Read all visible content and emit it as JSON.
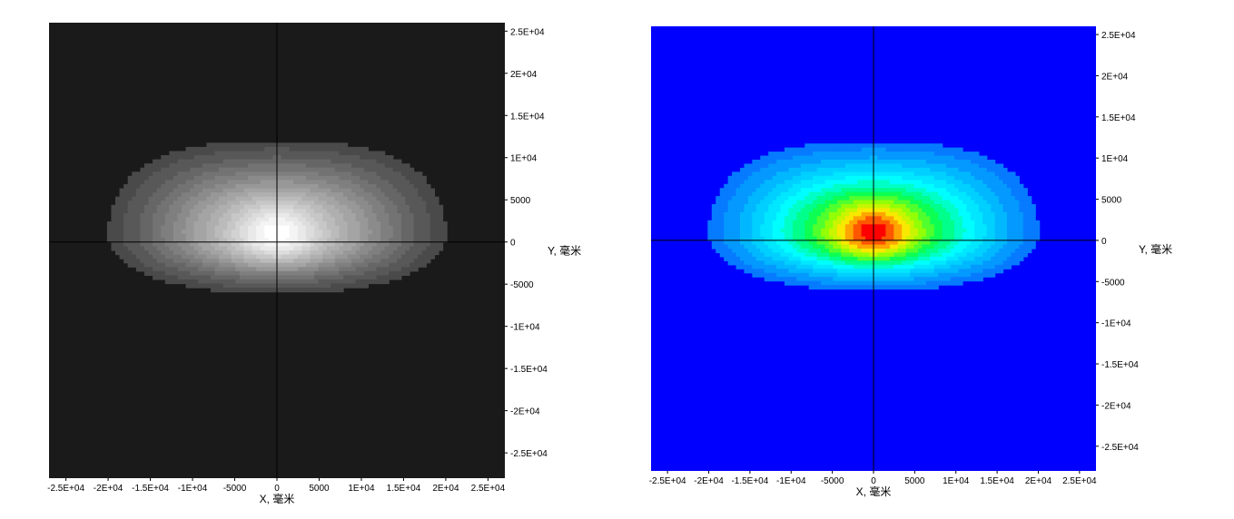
{
  "chart_data": [
    {
      "type": "heatmap",
      "colormap": "grayscale",
      "colors": {
        "background": "#1a1a1a",
        "low": "#3a3a3a",
        "high": "#ffffff",
        "axis_line": "#000000"
      },
      "xlabel": "X, 毫米",
      "ylabel": "Y, 毫米",
      "xlim": [
        -27000,
        27000
      ],
      "ylim": [
        -28000,
        26000
      ],
      "x_ticks": [
        -25000,
        -20000,
        -15000,
        -10000,
        -5000,
        0,
        5000,
        10000,
        15000,
        20000,
        25000
      ],
      "x_tick_labels": [
        "-2.5E+04",
        "-2E+04",
        "-1.5E+04",
        "-1E+04",
        "-5000",
        "0",
        "5000",
        "1E+04",
        "1.5E+04",
        "2E+04",
        "2.5E+04"
      ],
      "y_ticks": [
        25000,
        20000,
        15000,
        10000,
        5000,
        0,
        -5000,
        -10000,
        -15000,
        -20000,
        -25000
      ],
      "y_tick_labels": [
        "2.5E+04",
        "2E+04",
        "1.5E+04",
        "1E+04",
        "5000",
        "0",
        "-5000",
        "-1E+04",
        "-1.5E+04",
        "-2E+04",
        "-2.5E+04"
      ],
      "grid": false,
      "crosshair_at_origin": true,
      "levels": 16,
      "peak": {
        "x": 0,
        "y": 1000
      }
    },
    {
      "type": "heatmap",
      "colormap": "jet",
      "colors": {
        "background": "#0000ff",
        "low": "#0a5cff",
        "mid_cyan": "#00ffff",
        "mid_green": "#00ff00",
        "mid_yellow": "#ffff00",
        "high": "#ff0000",
        "axis_line": "#000000"
      },
      "xlabel": "X, 毫米",
      "ylabel": "Y, 毫米",
      "xlim": [
        -27000,
        27000
      ],
      "ylim": [
        -28000,
        26000
      ],
      "x_ticks": [
        -25000,
        -20000,
        -15000,
        -10000,
        -5000,
        0,
        5000,
        10000,
        15000,
        20000,
        25000
      ],
      "x_tick_labels": [
        "-2.5E+04",
        "-2E+04",
        "-1.5E+04",
        "-1E+04",
        "-5000",
        "0",
        "5000",
        "1E+04",
        "1.5E+04",
        "2E+04",
        "2.5E+04"
      ],
      "y_ticks": [
        25000,
        20000,
        15000,
        10000,
        5000,
        0,
        -5000,
        -10000,
        -15000,
        -20000,
        -25000
      ],
      "y_tick_labels": [
        "2.5E+04",
        "2E+04",
        "1.5E+04",
        "1E+04",
        "5000",
        "0",
        "-5000",
        "-1E+04",
        "-1.5E+04",
        "-2E+04",
        "-2.5E+04"
      ],
      "grid": false,
      "crosshair_at_origin": true,
      "levels": 16,
      "peak": {
        "x": 0,
        "y": 1000
      }
    }
  ]
}
